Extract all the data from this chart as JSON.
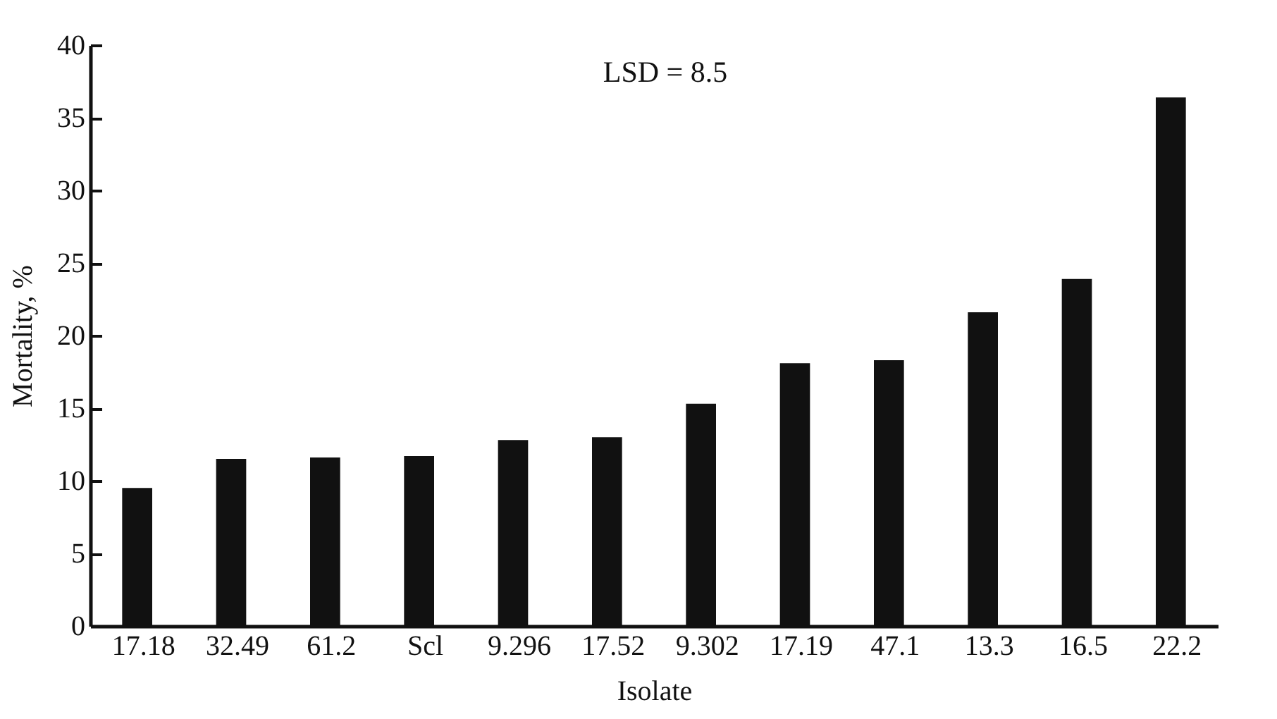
{
  "chart_data": {
    "type": "bar",
    "xlabel": "Isolate",
    "ylabel": "Mortality, %",
    "categories": [
      "17.18",
      "32.49",
      "61.2",
      "Scl",
      "9.296",
      "17.52",
      "9.302",
      "17.19",
      "47.1",
      "13.3",
      "16.5",
      "22.2"
    ],
    "values": [
      9.5,
      11.5,
      11.6,
      11.7,
      12.8,
      13.0,
      15.3,
      18.1,
      18.3,
      21.6,
      23.9,
      36.4
    ],
    "color": "#111111",
    "ylim": [
      0,
      40
    ],
    "yticks": [
      0,
      5,
      10,
      15,
      20,
      25,
      30,
      35,
      40
    ],
    "annotations": [
      "LSD = 8.5"
    ]
  }
}
